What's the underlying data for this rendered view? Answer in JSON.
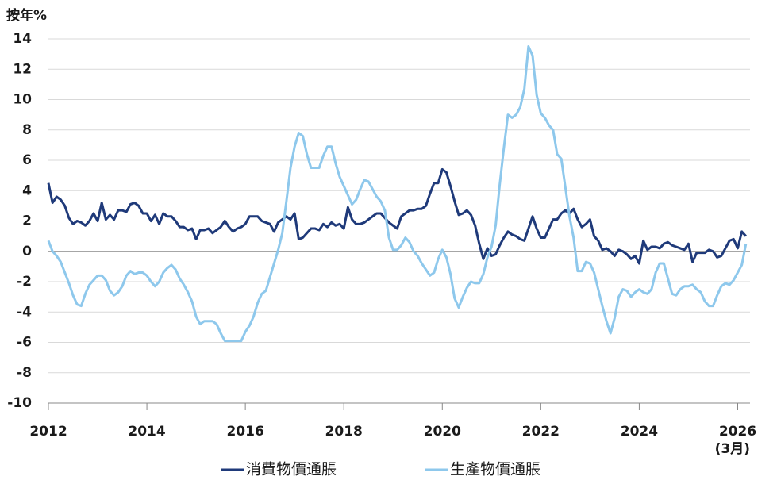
{
  "chart_data": {
    "type": "line",
    "y_label": "按年%",
    "annotation": "(3月)",
    "x": [
      "2012-01",
      "2012-02",
      "2012-03",
      "2012-04",
      "2012-05",
      "2012-06",
      "2012-07",
      "2012-08",
      "2012-09",
      "2012-10",
      "2012-11",
      "2012-12",
      "2013-01",
      "2013-02",
      "2013-03",
      "2013-04",
      "2013-05",
      "2013-06",
      "2013-07",
      "2013-08",
      "2013-09",
      "2013-10",
      "2013-11",
      "2013-12",
      "2014-01",
      "2014-02",
      "2014-03",
      "2014-04",
      "2014-05",
      "2014-06",
      "2014-07",
      "2014-08",
      "2014-09",
      "2014-10",
      "2014-11",
      "2014-12",
      "2015-01",
      "2015-02",
      "2015-03",
      "2015-04",
      "2015-05",
      "2015-06",
      "2015-07",
      "2015-08",
      "2015-09",
      "2015-10",
      "2015-11",
      "2015-12",
      "2016-01",
      "2016-02",
      "2016-03",
      "2016-04",
      "2016-05",
      "2016-06",
      "2016-07",
      "2016-08",
      "2016-09",
      "2016-10",
      "2016-11",
      "2016-12",
      "2017-01",
      "2017-02",
      "2017-03",
      "2017-04",
      "2017-05",
      "2017-06",
      "2017-07",
      "2017-08",
      "2017-09",
      "2017-10",
      "2017-11",
      "2017-12",
      "2018-01",
      "2018-02",
      "2018-03",
      "2018-04",
      "2018-05",
      "2018-06",
      "2018-07",
      "2018-08",
      "2018-09",
      "2018-10",
      "2018-11",
      "2018-12",
      "2019-01",
      "2019-02",
      "2019-03",
      "2019-04",
      "2019-05",
      "2019-06",
      "2019-07",
      "2019-08",
      "2019-09",
      "2019-10",
      "2019-11",
      "2019-12",
      "2020-01",
      "2020-02",
      "2020-03",
      "2020-04",
      "2020-05",
      "2020-06",
      "2020-07",
      "2020-08",
      "2020-09",
      "2020-10",
      "2020-11",
      "2020-12",
      "2021-01",
      "2021-02",
      "2021-03",
      "2021-04",
      "2021-05",
      "2021-06",
      "2021-07",
      "2021-08",
      "2021-09",
      "2021-10",
      "2021-11",
      "2021-12",
      "2022-01",
      "2022-02",
      "2022-03",
      "2022-04",
      "2022-05",
      "2022-06",
      "2022-07",
      "2022-08",
      "2022-09",
      "2022-10",
      "2022-11",
      "2022-12",
      "2023-01",
      "2023-02",
      "2023-03",
      "2023-04",
      "2023-05",
      "2023-06",
      "2023-07",
      "2023-08",
      "2023-09",
      "2023-10",
      "2023-11",
      "2023-12",
      "2024-01",
      "2024-02",
      "2024-03",
      "2024-04",
      "2024-05",
      "2024-06",
      "2024-07",
      "2024-08",
      "2024-09",
      "2024-10",
      "2024-11",
      "2024-12",
      "2025-01",
      "2025-02",
      "2025-03",
      "2025-04",
      "2025-05",
      "2025-06",
      "2025-07",
      "2025-08",
      "2025-09",
      "2025-10",
      "2025-11",
      "2025-12",
      "2026-01",
      "2026-02",
      "2026-03"
    ],
    "series": [
      {
        "name": "消費物價通脹",
        "color": "#1f3a7a",
        "values": [
          4.5,
          3.2,
          3.6,
          3.4,
          3.0,
          2.2,
          1.8,
          2.0,
          1.9,
          1.7,
          2.0,
          2.5,
          2.0,
          3.2,
          2.1,
          2.4,
          2.1,
          2.7,
          2.7,
          2.6,
          3.1,
          3.2,
          3.0,
          2.5,
          2.5,
          2.0,
          2.4,
          1.8,
          2.5,
          2.3,
          2.3,
          2.0,
          1.6,
          1.6,
          1.4,
          1.5,
          0.8,
          1.4,
          1.4,
          1.5,
          1.2,
          1.4,
          1.6,
          2.0,
          1.6,
          1.3,
          1.5,
          1.6,
          1.8,
          2.3,
          2.3,
          2.3,
          2.0,
          1.9,
          1.8,
          1.3,
          1.9,
          2.1,
          2.3,
          2.1,
          2.5,
          0.8,
          0.9,
          1.2,
          1.5,
          1.5,
          1.4,
          1.8,
          1.6,
          1.9,
          1.7,
          1.8,
          1.5,
          2.9,
          2.1,
          1.8,
          1.8,
          1.9,
          2.1,
          2.3,
          2.5,
          2.5,
          2.2,
          1.9,
          1.7,
          1.5,
          2.3,
          2.5,
          2.7,
          2.7,
          2.8,
          2.8,
          3.0,
          3.8,
          4.5,
          4.5,
          5.4,
          5.2,
          4.3,
          3.3,
          2.4,
          2.5,
          2.7,
          2.4,
          1.7,
          0.5,
          -0.5,
          0.2,
          -0.3,
          -0.2,
          0.4,
          0.9,
          1.3,
          1.1,
          1.0,
          0.8,
          0.7,
          1.5,
          2.3,
          1.5,
          0.9,
          0.9,
          1.5,
          2.1,
          2.1,
          2.5,
          2.7,
          2.5,
          2.8,
          2.1,
          1.6,
          1.8,
          2.1,
          1.0,
          0.7,
          0.1,
          0.2,
          0.0,
          -0.3,
          0.1,
          0.0,
          -0.2,
          -0.5,
          -0.3,
          -0.8,
          0.7,
          0.1,
          0.3,
          0.3,
          0.2,
          0.5,
          0.6,
          0.4,
          0.3,
          0.2,
          0.1,
          0.5,
          -0.7,
          -0.1,
          -0.1,
          -0.1,
          0.1,
          0.0,
          -0.4,
          -0.3,
          0.2,
          0.7,
          0.8,
          0.2,
          1.3,
          1.0
        ]
      },
      {
        "name": "生產物價通脹",
        "color": "#8ec8ec",
        "values": [
          0.7,
          0.0,
          -0.3,
          -0.7,
          -1.4,
          -2.1,
          -2.9,
          -3.5,
          -3.6,
          -2.8,
          -2.2,
          -1.9,
          -1.6,
          -1.6,
          -1.9,
          -2.6,
          -2.9,
          -2.7,
          -2.3,
          -1.6,
          -1.3,
          -1.5,
          -1.4,
          -1.4,
          -1.6,
          -2.0,
          -2.3,
          -2.0,
          -1.4,
          -1.1,
          -0.9,
          -1.2,
          -1.8,
          -2.2,
          -2.7,
          -3.3,
          -4.3,
          -4.8,
          -4.6,
          -4.6,
          -4.6,
          -4.8,
          -5.4,
          -5.9,
          -5.9,
          -5.9,
          -5.9,
          -5.9,
          -5.3,
          -4.9,
          -4.3,
          -3.4,
          -2.8,
          -2.6,
          -1.7,
          -0.8,
          0.1,
          1.2,
          3.3,
          5.5,
          6.9,
          7.8,
          7.6,
          6.4,
          5.5,
          5.5,
          5.5,
          6.3,
          6.9,
          6.9,
          5.8,
          4.9,
          4.3,
          3.7,
          3.1,
          3.4,
          4.1,
          4.7,
          4.6,
          4.1,
          3.6,
          3.3,
          2.7,
          0.9,
          0.1,
          0.1,
          0.4,
          0.9,
          0.6,
          0.0,
          -0.3,
          -0.8,
          -1.2,
          -1.6,
          -1.4,
          -0.5,
          0.1,
          -0.4,
          -1.5,
          -3.1,
          -3.7,
          -3.0,
          -2.4,
          -2.0,
          -2.1,
          -2.1,
          -1.5,
          -0.4,
          0.3,
          1.7,
          4.4,
          6.8,
          9.0,
          8.8,
          9.0,
          9.5,
          10.7,
          13.5,
          12.9,
          10.3,
          9.1,
          8.8,
          8.3,
          8.0,
          6.4,
          6.1,
          4.2,
          2.3,
          0.9,
          -1.3,
          -1.3,
          -0.7,
          -0.8,
          -1.4,
          -2.5,
          -3.6,
          -4.6,
          -5.4,
          -4.4,
          -3.0,
          -2.5,
          -2.6,
          -3.0,
          -2.7,
          -2.5,
          -2.7,
          -2.8,
          -2.5,
          -1.4,
          -0.8,
          -0.8,
          -1.8,
          -2.8,
          -2.9,
          -2.5,
          -2.3,
          -2.3,
          -2.2,
          -2.5,
          -2.7,
          -3.3,
          -3.6,
          -3.6,
          -2.9,
          -2.3,
          -2.1,
          -2.2,
          -1.9,
          -1.4,
          -0.9,
          0.5
        ]
      }
    ],
    "xlim": [
      2012,
      2026.25
    ],
    "xticks": [
      2012,
      2014,
      2016,
      2018,
      2020,
      2022,
      2024,
      2026
    ],
    "ylim": [
      -10,
      14
    ],
    "yticks": [
      -10,
      -8,
      -6,
      -4,
      -2,
      0,
      2,
      4,
      6,
      8,
      10,
      12,
      14
    ],
    "grid": true,
    "legend": "bottom"
  }
}
